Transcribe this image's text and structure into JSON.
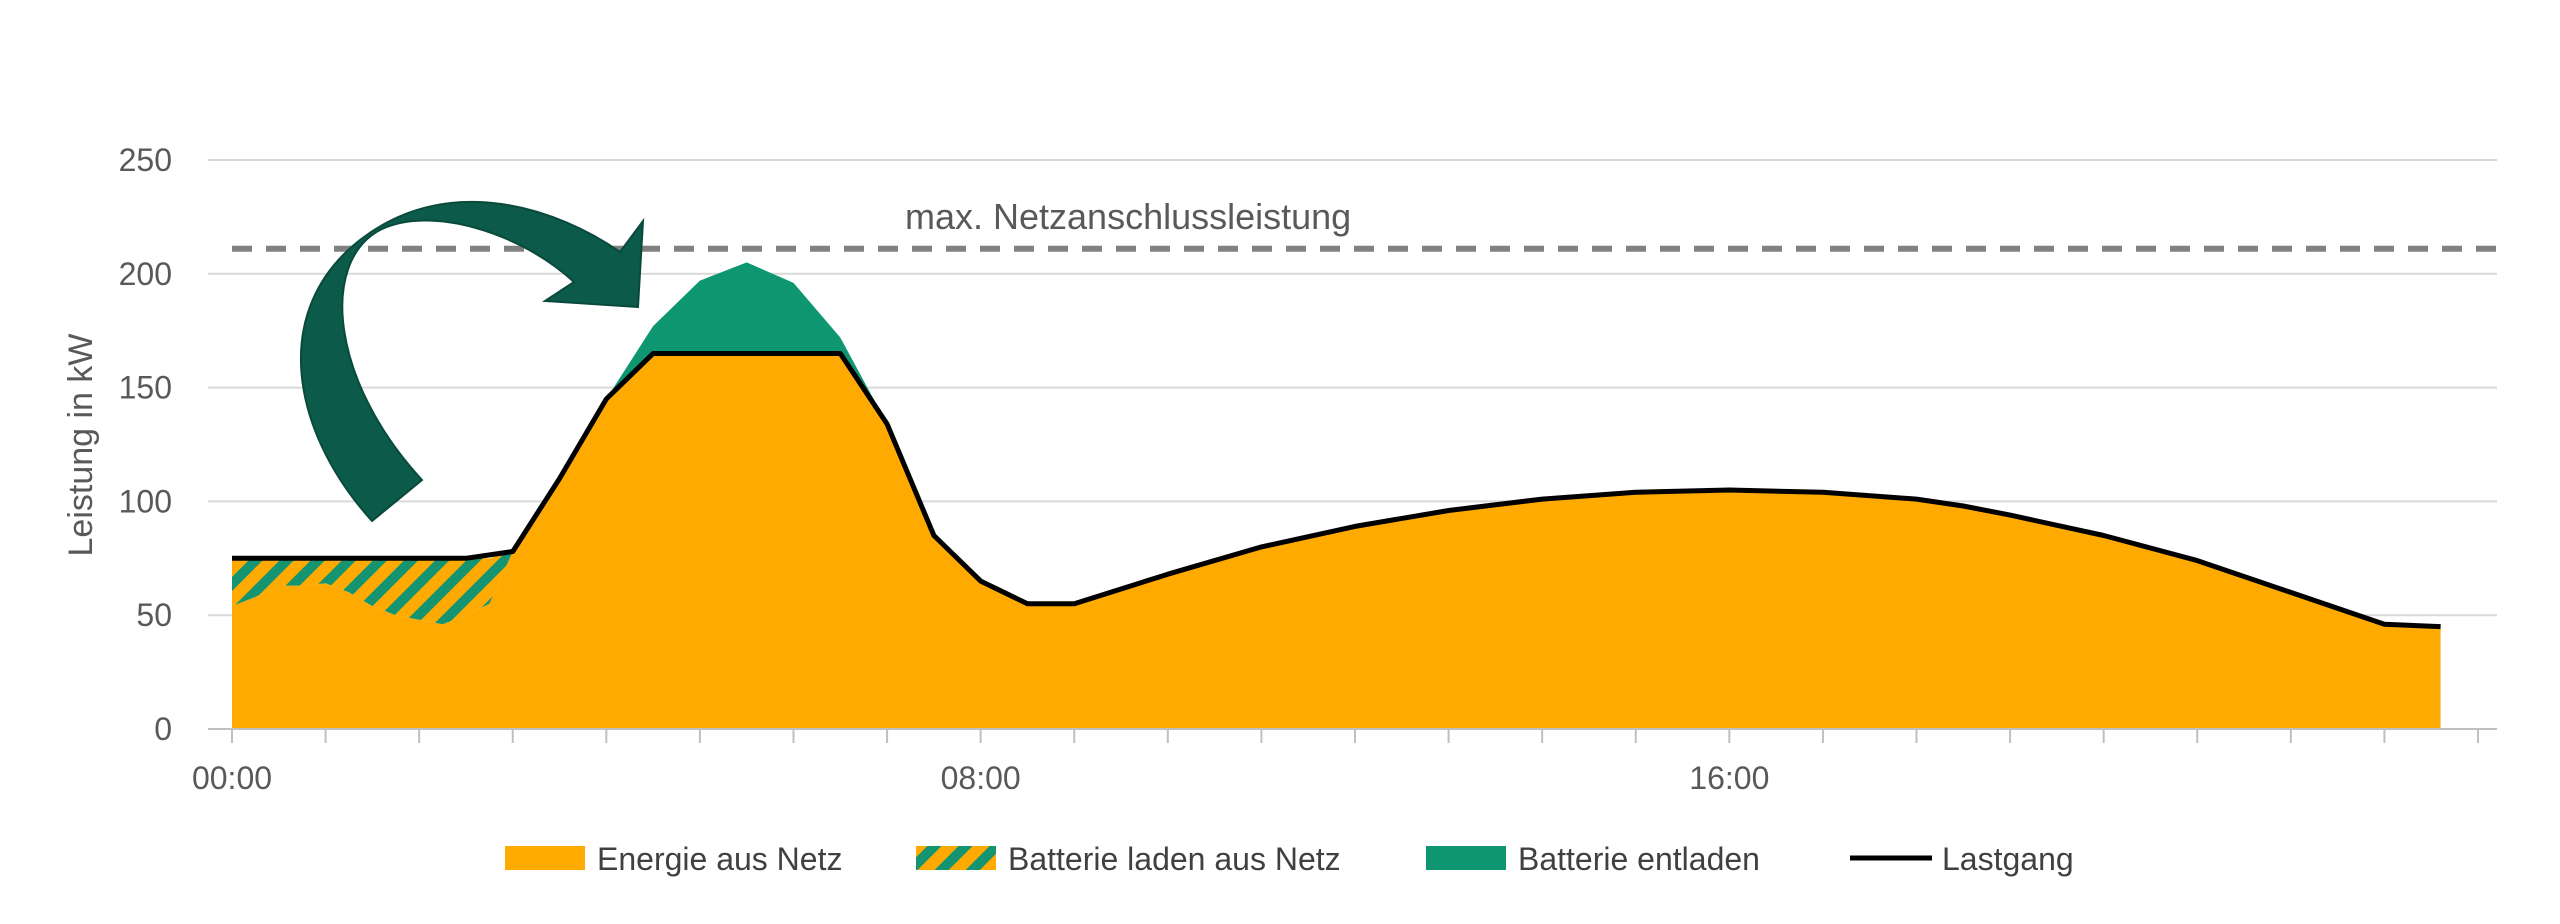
{
  "chart_data": {
    "type": "area",
    "ylabel": "Leistung in kW",
    "ylim": [
      0,
      250
    ],
    "yticks": [
      0,
      50,
      100,
      150,
      200,
      250
    ],
    "xlim": [
      0,
      24
    ],
    "xticks": [
      {
        "value": 0,
        "label": "00:00"
      },
      {
        "value": 8,
        "label": "08:00"
      },
      {
        "value": 16,
        "label": "16:00"
      }
    ],
    "grid": true,
    "legend_position": "bottom",
    "colors": {
      "grid_energy": "#FFAA00",
      "battery_charge_stripe": "#149470",
      "battery_discharge": "#0E9670",
      "load": "#000000",
      "limit": "#808080",
      "arrow": "#0B5A4A"
    },
    "series": [
      {
        "name": "Energie aus Netz",
        "type": "area",
        "x": [
          0,
          0.25,
          0.5,
          0.75,
          1.0,
          1.25,
          1.5,
          1.75,
          2.0,
          2.25,
          2.5,
          2.75,
          3.0,
          3.5,
          4.0,
          4.5,
          5.0,
          5.5,
          6.0,
          6.5,
          7.0,
          7.5,
          8.0,
          8.5,
          9.0,
          10,
          11,
          12,
          13,
          14,
          15,
          16,
          17,
          18,
          18.5,
          19,
          20,
          21,
          22,
          23,
          23.6
        ],
        "values": [
          54,
          58,
          63,
          63,
          64,
          60,
          54,
          50,
          48,
          46,
          50,
          55,
          78,
          110,
          145,
          165,
          165,
          165,
          165,
          165,
          134,
          85,
          65,
          55,
          55,
          68,
          80,
          89,
          96,
          101,
          104,
          105,
          104,
          101,
          98,
          94,
          85,
          74,
          60,
          46,
          45
        ]
      },
      {
        "name": "Batterie laden aus Netz",
        "type": "hatched-area",
        "x": [
          0,
          0.25,
          0.5,
          0.75,
          1.0,
          1.25,
          1.5,
          1.75,
          2.0,
          2.25,
          2.5,
          2.75,
          3.0
        ],
        "lower": [
          54,
          58,
          63,
          63,
          64,
          60,
          54,
          50,
          48,
          46,
          50,
          55,
          78
        ],
        "upper": [
          75,
          75,
          75,
          75,
          75,
          75,
          75,
          75,
          75,
          75,
          75,
          75,
          78
        ]
      },
      {
        "name": "Batterie entladen",
        "type": "area-between",
        "x": [
          4.0,
          4.5,
          5.0,
          5.5,
          6.0,
          6.5,
          7.0
        ],
        "lower": [
          145,
          165,
          165,
          165,
          165,
          165,
          134
        ],
        "upper": [
          145,
          177,
          197,
          205,
          196,
          172,
          134
        ]
      },
      {
        "name": "Lastgang",
        "type": "line",
        "x": [
          0,
          0.5,
          1.0,
          1.5,
          2.0,
          2.5,
          3.0,
          3.5,
          4.0,
          4.5,
          5.0,
          5.5,
          6.0,
          6.5,
          7.0,
          7.5,
          8.0,
          8.5,
          9.0,
          10,
          11,
          12,
          13,
          14,
          15,
          16,
          17,
          18,
          18.5,
          19,
          20,
          21,
          22,
          23,
          23.6
        ],
        "values": [
          75,
          75,
          75,
          75,
          75,
          75,
          78,
          110,
          145,
          165,
          165,
          165,
          165,
          165,
          134,
          85,
          65,
          55,
          55,
          68,
          80,
          89,
          96,
          101,
          104,
          105,
          104,
          101,
          98,
          94,
          85,
          74,
          60,
          46,
          45
        ]
      }
    ],
    "limit_line": {
      "label": "max. Netzanschlussleistung",
      "value": 211
    }
  }
}
